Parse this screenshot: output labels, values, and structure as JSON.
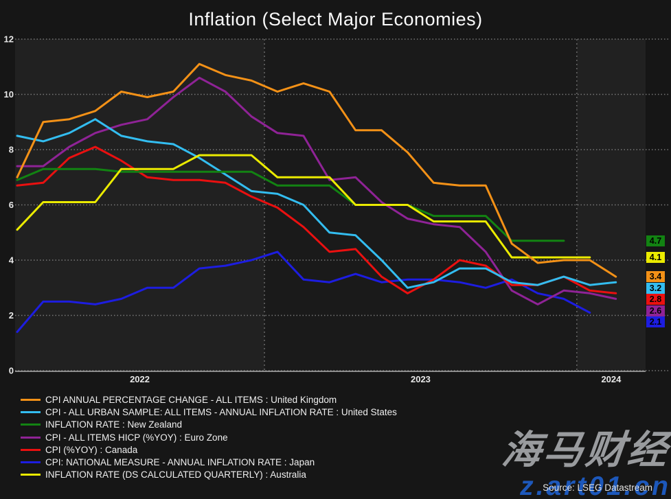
{
  "title": "Inflation (Select Major Economies)",
  "source": "Source: LSEG Datastream",
  "watermarks": {
    "cjk": "海马财经",
    "url": "z.art01.cn"
  },
  "chart_data": {
    "type": "line",
    "title": "Inflation (Select Major Economies)",
    "xlabel": "",
    "ylabel": "",
    "ylim": [
      0,
      12
    ],
    "y_ticks": [
      0,
      2,
      4,
      6,
      8,
      10,
      12
    ],
    "grid": "dotted horizontal gridlines at each y tick; dashed vertical lines at year boundaries; alternating year background bands",
    "legend_position": "bottom-left",
    "x_frequency": "monthly",
    "x_months": [
      "2022-03",
      "2022-04",
      "2022-05",
      "2022-06",
      "2022-07",
      "2022-08",
      "2022-09",
      "2022-10",
      "2022-11",
      "2022-12",
      "2023-01",
      "2023-02",
      "2023-03",
      "2023-04",
      "2023-05",
      "2023-06",
      "2023-07",
      "2023-08",
      "2023-09",
      "2023-10",
      "2023-11",
      "2023-12",
      "2024-01",
      "2024-02"
    ],
    "x_year_labels": [
      "2022",
      "2023",
      "2024"
    ],
    "year_boundary_month_indices": [
      9.5,
      21.5
    ],
    "series": [
      {
        "name": "United Kingdom",
        "label": "CPI ANNUAL PERCENTAGE CHANGE - ALL ITEMS : United Kingdom",
        "color": "#f39117",
        "end_label": "3.4",
        "z": 7,
        "values": [
          7.0,
          9.0,
          9.1,
          9.4,
          10.1,
          9.9,
          10.1,
          11.1,
          10.7,
          10.5,
          10.1,
          10.4,
          10.1,
          8.7,
          8.7,
          7.9,
          6.8,
          6.7,
          6.7,
          4.6,
          3.9,
          4.0,
          4.0,
          3.4
        ]
      },
      {
        "name": "United States",
        "label": "CPI - ALL URBAN SAMPLE: ALL ITEMS - ANNUAL INFLATION RATE : United States",
        "color": "#33bdf0",
        "end_label": "3.2",
        "z": 4,
        "values": [
          8.5,
          8.3,
          8.6,
          9.1,
          8.5,
          8.3,
          8.2,
          7.7,
          7.1,
          6.5,
          6.4,
          6.0,
          5.0,
          4.9,
          4.0,
          3.0,
          3.2,
          3.7,
          3.7,
          3.2,
          3.1,
          3.4,
          3.1,
          3.2
        ]
      },
      {
        "name": "New Zealand",
        "label": "INFLATION RATE : New Zealand",
        "color": "#128312",
        "end_label": "4.7",
        "z": 5,
        "values": [
          6.9,
          7.3,
          7.3,
          7.3,
          7.2,
          7.2,
          7.2,
          7.2,
          7.2,
          7.2,
          6.7,
          6.7,
          6.7,
          6.0,
          6.0,
          6.0,
          5.6,
          5.6,
          5.6,
          4.7,
          4.7,
          4.7
        ]
      },
      {
        "name": "Euro Zone",
        "label": "CPI - ALL ITEMS HICP (%YOY) : Euro Zone",
        "color": "#8f2396",
        "end_label": "2.6",
        "z": 2,
        "values": [
          7.4,
          7.4,
          8.1,
          8.6,
          8.9,
          9.1,
          9.9,
          10.6,
          10.1,
          9.2,
          8.6,
          8.5,
          6.9,
          7.0,
          6.1,
          5.5,
          5.3,
          5.2,
          4.3,
          2.9,
          2.4,
          2.9,
          2.8,
          2.6
        ]
      },
      {
        "name": "Canada",
        "label": "CPI (%YOY) : Canada",
        "color": "#ea1010",
        "end_label": "2.8",
        "z": 3,
        "values": [
          6.7,
          6.8,
          7.7,
          8.1,
          7.6,
          7.0,
          6.9,
          6.9,
          6.8,
          6.3,
          5.9,
          5.2,
          4.3,
          4.4,
          3.4,
          2.8,
          3.3,
          4.0,
          3.8,
          3.1,
          3.1,
          3.4,
          2.9,
          2.8
        ]
      },
      {
        "name": "Japan",
        "label": "CPI: NATIONAL MEASURE - ANNUAL INFLATION RATE : Japan",
        "color": "#1d1de0",
        "end_label": "2.1",
        "z": 1,
        "values": [
          1.4,
          2.5,
          2.5,
          2.4,
          2.6,
          3.0,
          3.0,
          3.7,
          3.8,
          4.0,
          4.3,
          3.3,
          3.2,
          3.5,
          3.2,
          3.3,
          3.3,
          3.2,
          3.0,
          3.3,
          2.8,
          2.6,
          2.1
        ]
      },
      {
        "name": "Australia",
        "label": "INFLATION RATE (DS CALCULATED QUARTERLY) : Australia",
        "color": "#ebeb00",
        "end_label": "4.1",
        "z": 6,
        "values": [
          5.1,
          6.1,
          6.1,
          6.1,
          7.3,
          7.3,
          7.3,
          7.8,
          7.8,
          7.8,
          7.0,
          7.0,
          7.0,
          6.0,
          6.0,
          6.0,
          5.4,
          5.4,
          5.4,
          4.1,
          4.1,
          4.1,
          4.1
        ]
      }
    ]
  }
}
